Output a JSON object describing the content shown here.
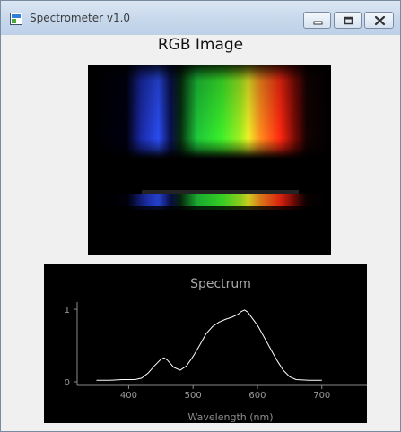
{
  "window": {
    "title": "Spectrometer v1.0",
    "controls": [
      "minimize",
      "maximize",
      "close"
    ]
  },
  "image_panel": {
    "title": "RGB Image"
  },
  "chart_data": {
    "type": "line",
    "title": "Spectrum",
    "xlabel": "Wavelength (nm)",
    "ylabel": "",
    "xlim": [
      320,
      770
    ],
    "ylim": [
      -0.05,
      1.1
    ],
    "xticks": [
      400,
      500,
      600,
      700
    ],
    "yticks": [
      0,
      1
    ],
    "background": "#000000",
    "line_color": "#ffffff",
    "x": [
      350,
      370,
      390,
      410,
      420,
      430,
      440,
      450,
      455,
      460,
      470,
      480,
      490,
      500,
      510,
      520,
      530,
      540,
      550,
      560,
      570,
      575,
      580,
      585,
      590,
      600,
      610,
      620,
      630,
      640,
      650,
      660,
      680,
      700
    ],
    "y": [
      0.02,
      0.02,
      0.03,
      0.03,
      0.05,
      0.12,
      0.22,
      0.31,
      0.33,
      0.3,
      0.2,
      0.16,
      0.22,
      0.35,
      0.5,
      0.66,
      0.76,
      0.82,
      0.86,
      0.89,
      0.93,
      0.97,
      0.99,
      0.96,
      0.9,
      0.78,
      0.62,
      0.46,
      0.3,
      0.16,
      0.07,
      0.03,
      0.02,
      0.02
    ]
  }
}
